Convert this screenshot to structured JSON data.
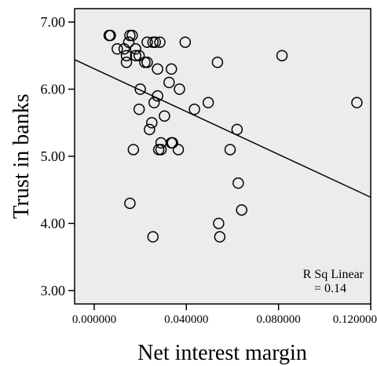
{
  "chart_data": {
    "type": "scatter",
    "title": "",
    "xlabel": "Net interest margin",
    "ylabel": "Trust in banks",
    "xlim": [
      -0.0085,
      0.12
    ],
    "ylim": [
      2.8,
      7.2
    ],
    "x_ticks": [
      0.0,
      0.04,
      0.08,
      0.12
    ],
    "x_tick_labels": [
      "0.000000",
      "0.040000",
      "0.080000",
      "0.120000"
    ],
    "y_ticks": [
      3.0,
      4.0,
      5.0,
      6.0,
      7.0
    ],
    "y_tick_labels": [
      "3.00",
      "4.00",
      "5.00",
      "6.00",
      "7.00"
    ],
    "grid": false,
    "background": "#ececec",
    "points": [
      {
        "x": 0.0065,
        "y": 6.8
      },
      {
        "x": 0.007,
        "y": 6.8
      },
      {
        "x": 0.0155,
        "y": 6.8
      },
      {
        "x": 0.0165,
        "y": 6.8
      },
      {
        "x": 0.015,
        "y": 6.7
      },
      {
        "x": 0.0255,
        "y": 6.7
      },
      {
        "x": 0.0265,
        "y": 6.7
      },
      {
        "x": 0.0285,
        "y": 6.7
      },
      {
        "x": 0.0395,
        "y": 6.7
      },
      {
        "x": 0.023,
        "y": 6.7
      },
      {
        "x": 0.013,
        "y": 6.6
      },
      {
        "x": 0.01,
        "y": 6.6
      },
      {
        "x": 0.018,
        "y": 6.6
      },
      {
        "x": 0.014,
        "y": 6.5
      },
      {
        "x": 0.018,
        "y": 6.5
      },
      {
        "x": 0.0195,
        "y": 6.5
      },
      {
        "x": 0.022,
        "y": 6.4
      },
      {
        "x": 0.014,
        "y": 6.4
      },
      {
        "x": 0.023,
        "y": 6.4
      },
      {
        "x": 0.0535,
        "y": 6.4
      },
      {
        "x": 0.0815,
        "y": 6.5
      },
      {
        "x": 0.0275,
        "y": 6.3
      },
      {
        "x": 0.0335,
        "y": 6.3
      },
      {
        "x": 0.0325,
        "y": 6.1
      },
      {
        "x": 0.02,
        "y": 6.0
      },
      {
        "x": 0.037,
        "y": 6.0
      },
      {
        "x": 0.0275,
        "y": 5.9
      },
      {
        "x": 0.026,
        "y": 5.8
      },
      {
        "x": 0.0495,
        "y": 5.8
      },
      {
        "x": 0.114,
        "y": 5.8
      },
      {
        "x": 0.0195,
        "y": 5.7
      },
      {
        "x": 0.0435,
        "y": 5.7
      },
      {
        "x": 0.0305,
        "y": 5.6
      },
      {
        "x": 0.025,
        "y": 5.5
      },
      {
        "x": 0.024,
        "y": 5.4
      },
      {
        "x": 0.062,
        "y": 5.4
      },
      {
        "x": 0.029,
        "y": 5.2
      },
      {
        "x": 0.0335,
        "y": 5.2
      },
      {
        "x": 0.034,
        "y": 5.2
      },
      {
        "x": 0.017,
        "y": 5.1
      },
      {
        "x": 0.028,
        "y": 5.1
      },
      {
        "x": 0.029,
        "y": 5.1
      },
      {
        "x": 0.0365,
        "y": 5.1
      },
      {
        "x": 0.059,
        "y": 5.1
      },
      {
        "x": 0.0625,
        "y": 4.6
      },
      {
        "x": 0.0155,
        "y": 4.3
      },
      {
        "x": 0.064,
        "y": 4.2
      },
      {
        "x": 0.054,
        "y": 4.0
      },
      {
        "x": 0.0255,
        "y": 3.8
      },
      {
        "x": 0.0545,
        "y": 3.8
      }
    ],
    "fit_line": {
      "x": [
        -0.0085,
        0.12
      ],
      "y": [
        6.44,
        4.39
      ]
    },
    "annotation": [
      "R Sq Linear",
      "= 0.14"
    ]
  }
}
